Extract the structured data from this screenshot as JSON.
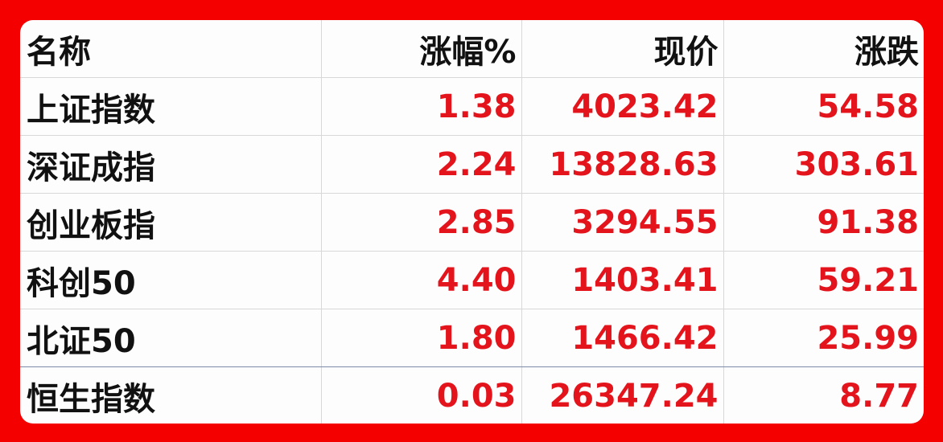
{
  "header": {
    "name": "名称",
    "pct": "涨幅%",
    "price": "现价",
    "change": "涨跌"
  },
  "rows": [
    {
      "name": "上证指数",
      "pct": "1.38",
      "price": "4023.42",
      "change": "54.58"
    },
    {
      "name": "深证成指",
      "pct": "2.24",
      "price": "13828.63",
      "change": "303.61"
    },
    {
      "name": "创业板指",
      "pct": "2.85",
      "price": "3294.55",
      "change": "91.38"
    },
    {
      "name": "科创50",
      "pct": "4.40",
      "price": "1403.41",
      "change": "59.21"
    },
    {
      "name": "北证50",
      "pct": "1.80",
      "price": "1466.42",
      "change": "25.99"
    },
    {
      "name": "恒生指数",
      "pct": "0.03",
      "price": "26347.24",
      "change": "8.77"
    }
  ],
  "colors": {
    "frame": "#f40000",
    "value_text": "#e3141c",
    "label_text": "#111111"
  }
}
